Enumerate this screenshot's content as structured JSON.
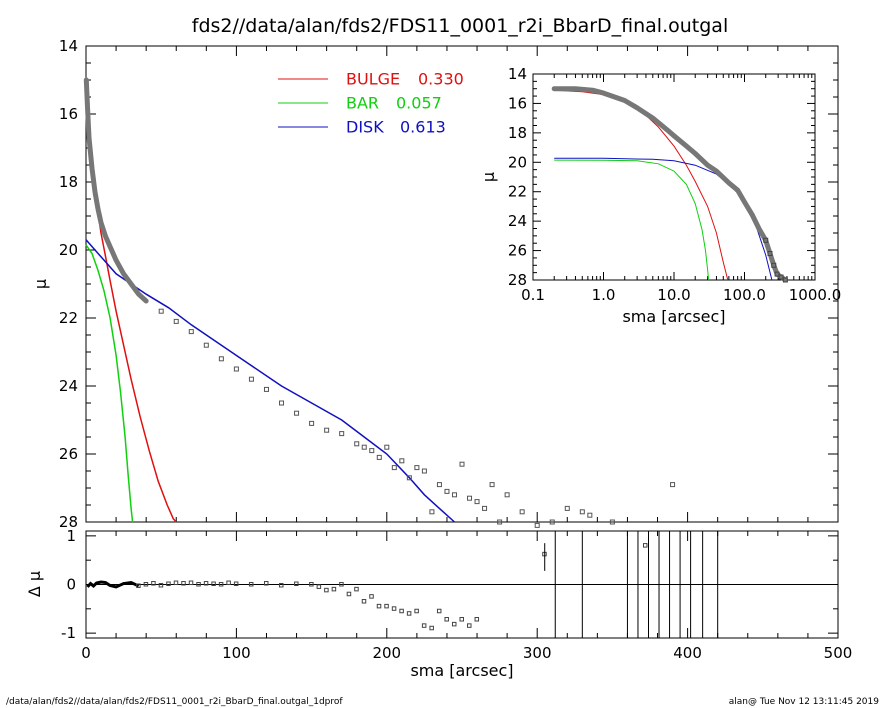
{
  "title": "fds2//data/alan/fds2/FDS11_0001_r2i_BbarD_final.outgal",
  "footer": {
    "left": "/data/alan/fds2//data/alan/fds2/FDS11_0001_r2i_BbarD_final.outgal_1dprof",
    "right": "alan@  Tue Nov 12 13:11:45 2019"
  },
  "colors": {
    "bulge": "#e01010",
    "bar": "#10d010",
    "disk": "#1010c0",
    "data": "#555555",
    "axis": "#000000"
  },
  "legend": {
    "position": "top-center",
    "items": [
      {
        "label": "BULGE",
        "value": "0.330",
        "color": "#e01010"
      },
      {
        "label": "BAR",
        "value": "0.057",
        "color": "#10d010"
      },
      {
        "label": "DISK",
        "value": "0.613",
        "color": "#1010c0"
      }
    ]
  },
  "chart_data": [
    {
      "id": "main",
      "type": "line",
      "xlabel": "",
      "ylabel": "μ",
      "xlim": [
        0,
        500
      ],
      "ylim": [
        28,
        14
      ],
      "y_inverted": true,
      "xticks": [
        "0",
        "100",
        "200",
        "300",
        "400",
        "500"
      ],
      "yticks": [
        "14",
        "16",
        "18",
        "20",
        "22",
        "24",
        "26",
        "28"
      ],
      "series": [
        {
          "name": "BULGE",
          "x": [
            0.3,
            1,
            2,
            4,
            6,
            8,
            10,
            13,
            16,
            20,
            25,
            30,
            36,
            42,
            48,
            54,
            58,
            60
          ],
          "y": [
            15.0,
            15.8,
            16.6,
            17.6,
            18.3,
            18.9,
            19.5,
            20.2,
            20.9,
            21.8,
            22.8,
            23.8,
            24.9,
            25.9,
            26.8,
            27.5,
            27.9,
            28.0
          ]
        },
        {
          "name": "BAR",
          "x": [
            0,
            4,
            8,
            12,
            16,
            20,
            23,
            26,
            28,
            30,
            31
          ],
          "y": [
            19.85,
            20.1,
            20.6,
            21.2,
            22.0,
            23.1,
            24.2,
            25.5,
            26.6,
            27.6,
            28.0
          ]
        },
        {
          "name": "DISK",
          "x": [
            0,
            10,
            20,
            30,
            40,
            55,
            70,
            90,
            110,
            130,
            150,
            170,
            185,
            200,
            215,
            225,
            235,
            245
          ],
          "y": [
            19.7,
            20.2,
            20.7,
            21.0,
            21.3,
            21.7,
            22.2,
            22.8,
            23.4,
            24.0,
            24.5,
            25.0,
            25.5,
            26.0,
            26.7,
            27.2,
            27.6,
            28.0
          ]
        },
        {
          "name": "data",
          "x": [
            0.2,
            1,
            2,
            4,
            6,
            8,
            10,
            13,
            16,
            20,
            25,
            30,
            35,
            40,
            50,
            60,
            70,
            80,
            90,
            100,
            110,
            120,
            130,
            140,
            150,
            160,
            170,
            180,
            185,
            190,
            195,
            200,
            205,
            210,
            215,
            220,
            225,
            230,
            235,
            240,
            245,
            250,
            255,
            260,
            265,
            270,
            275,
            280,
            290,
            300,
            310,
            320,
            330,
            335,
            350,
            390
          ],
          "y": [
            15.0,
            15.8,
            16.7,
            17.6,
            18.3,
            18.8,
            19.2,
            19.6,
            19.9,
            20.3,
            20.7,
            21.0,
            21.3,
            21.5,
            21.8,
            22.1,
            22.4,
            22.8,
            23.2,
            23.5,
            23.8,
            24.1,
            24.5,
            24.8,
            25.1,
            25.3,
            25.4,
            25.7,
            25.8,
            25.9,
            26.1,
            25.8,
            26.4,
            26.2,
            26.7,
            26.4,
            26.5,
            27.7,
            26.9,
            27.1,
            27.2,
            26.3,
            27.3,
            27.4,
            27.6,
            26.9,
            28.0,
            27.2,
            27.7,
            28.1,
            28.0,
            27.6,
            27.7,
            27.8,
            28.0,
            26.9
          ]
        }
      ]
    },
    {
      "id": "inset",
      "type": "line",
      "xlabel": "sma [arcsec]",
      "ylabel": "μ",
      "xscale": "log",
      "xlim": [
        0.1,
        1000
      ],
      "ylim": [
        28,
        14
      ],
      "y_inverted": true,
      "xticks": [
        "0.1",
        "1.0",
        "10.0",
        "100.0",
        "1000.0"
      ],
      "yticks": [
        "14",
        "16",
        "18",
        "20",
        "22",
        "24",
        "26",
        "28"
      ],
      "series": [
        {
          "name": "BULGE",
          "x": [
            0.2,
            0.5,
            1,
            2,
            4,
            6,
            10,
            15,
            20,
            30,
            40,
            50,
            58
          ],
          "y": [
            15.1,
            15.2,
            15.4,
            15.8,
            16.8,
            17.6,
            18.9,
            20.2,
            21.3,
            23.0,
            24.8,
            26.8,
            28.0
          ]
        },
        {
          "name": "BAR",
          "x": [
            0.2,
            1,
            3,
            6,
            10,
            15,
            20,
            25,
            28,
            30,
            31
          ],
          "y": [
            19.85,
            19.86,
            19.9,
            20.1,
            20.6,
            21.5,
            22.8,
            24.6,
            26.0,
            27.3,
            28.0
          ]
        },
        {
          "name": "DISK",
          "x": [
            0.2,
            1,
            5,
            10,
            20,
            40,
            60,
            80,
            100,
            150,
            200,
            245
          ],
          "y": [
            19.72,
            19.73,
            19.8,
            19.9,
            20.2,
            20.8,
            21.5,
            22.1,
            22.8,
            24.5,
            26.3,
            28.0
          ]
        },
        {
          "name": "data",
          "x": [
            0.2,
            0.4,
            0.7,
            1,
            2,
            3,
            5,
            8,
            10,
            15,
            20,
            30,
            40,
            60,
            80,
            100,
            130,
            160,
            200,
            230,
            260,
            290,
            330,
            380
          ],
          "y": [
            15.0,
            15.0,
            15.1,
            15.3,
            15.8,
            16.3,
            17.0,
            17.8,
            18.2,
            18.9,
            19.4,
            20.2,
            20.6,
            21.4,
            21.9,
            22.7,
            23.6,
            24.5,
            25.3,
            26.2,
            27.0,
            27.6,
            27.8,
            28.0
          ]
        }
      ]
    },
    {
      "id": "residual",
      "type": "scatter",
      "xlabel": "sma [arcsec]",
      "ylabel": "Δ μ",
      "xlim": [
        0,
        500
      ],
      "ylim": [
        -1.1,
        1.1
      ],
      "xticks": [
        "0",
        "100",
        "200",
        "300",
        "400",
        "500"
      ],
      "yticks": [
        "1",
        "0",
        "-1"
      ],
      "series": [
        {
          "name": "residual",
          "x": [
            1,
            3,
            5,
            7,
            10,
            13,
            16,
            20,
            25,
            30,
            35,
            40,
            45,
            50,
            55,
            60,
            65,
            70,
            75,
            80,
            85,
            90,
            95,
            100,
            110,
            120,
            130,
            140,
            150,
            155,
            160,
            165,
            170,
            175,
            180,
            185,
            190,
            195,
            200,
            205,
            210,
            215,
            220,
            225,
            230,
            235,
            240,
            245,
            250,
            255,
            260,
            305,
            372
          ],
          "y": [
            -0.05,
            0.02,
            -0.03,
            0.03,
            0.05,
            0.04,
            -0.02,
            -0.05,
            0.02,
            0.04,
            -0.03,
            0.0,
            0.02,
            -0.02,
            0.01,
            0.03,
            0.02,
            0.03,
            0.0,
            0.02,
            0.01,
            0.0,
            0.03,
            0.01,
            0.0,
            0.02,
            -0.02,
            0.01,
            0.0,
            -0.05,
            -0.12,
            -0.1,
            0.0,
            -0.2,
            -0.1,
            -0.35,
            -0.25,
            -0.45,
            -0.45,
            -0.5,
            -0.55,
            -0.6,
            -0.55,
            -0.85,
            -0.9,
            -0.55,
            -0.72,
            -0.82,
            -0.72,
            -0.85,
            -0.72,
            0.62,
            0.8
          ]
        },
        {
          "name": "vertical-markers",
          "x": [
            312,
            330,
            360,
            367,
            374,
            381,
            388,
            395,
            402,
            410,
            420
          ]
        }
      ]
    }
  ]
}
